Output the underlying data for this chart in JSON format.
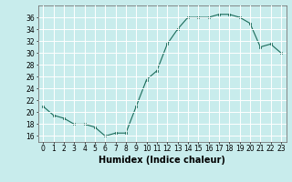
{
  "x": [
    0,
    1,
    2,
    3,
    4,
    5,
    6,
    7,
    8,
    9,
    10,
    11,
    12,
    13,
    14,
    15,
    16,
    17,
    18,
    19,
    20,
    21,
    22,
    23
  ],
  "y": [
    21,
    19.5,
    19,
    18,
    18,
    17.5,
    16,
    16.5,
    16.5,
    21,
    25.5,
    27,
    31.5,
    34,
    36,
    36,
    36,
    36.5,
    36.5,
    36,
    35,
    31,
    31.5,
    30
  ],
  "line_color": "#1a6b5a",
  "marker_color": "#1a6b5a",
  "bg_color": "#c8ecec",
  "grid_color": "#ffffff",
  "xlabel": "Humidex (Indice chaleur)",
  "xlabel_fontsize": 7,
  "xtick_fontsize": 5.5,
  "ytick_fontsize": 5.5,
  "ylim": [
    15,
    38
  ],
  "xlim": [
    -0.5,
    23.5
  ],
  "yticks": [
    16,
    18,
    20,
    22,
    24,
    26,
    28,
    30,
    32,
    34,
    36
  ],
  "xticks": [
    0,
    1,
    2,
    3,
    4,
    5,
    6,
    7,
    8,
    9,
    10,
    11,
    12,
    13,
    14,
    15,
    16,
    17,
    18,
    19,
    20,
    21,
    22,
    23
  ]
}
